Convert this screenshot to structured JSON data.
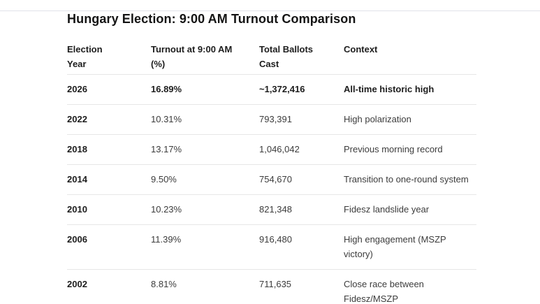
{
  "title": "Hungary Election: 9:00 AM Turnout Comparison",
  "table": {
    "headers": [
      "Election\nYear",
      "Turnout at 9:00 AM\n(%)",
      "Total Ballots\nCast",
      "Context"
    ],
    "rows": [
      {
        "year": "2026",
        "turnout": "16.89%",
        "ballots": "~1,372,416",
        "context": "All-time historic high"
      },
      {
        "year": "2022",
        "turnout": "10.31%",
        "ballots": "793,391",
        "context": "High polarization"
      },
      {
        "year": "2018",
        "turnout": "13.17%",
        "ballots": "1,046,042",
        "context": "Previous morning record"
      },
      {
        "year": "2014",
        "turnout": "9.50%",
        "ballots": "754,670",
        "context": "Transition to one-round system"
      },
      {
        "year": "2010",
        "turnout": "10.23%",
        "ballots": "821,348",
        "context": "Fidesz landslide year"
      },
      {
        "year": "2006",
        "turnout": "11.39%",
        "ballots": "916,480",
        "context": "High engagement (MSZP\nvictory)"
      },
      {
        "year": "2002",
        "turnout": "8.81%",
        "ballots": "711,635",
        "context": "Close race between\nFidesz/MSZP"
      }
    ]
  },
  "chart_data": {
    "type": "table",
    "title": "Hungary Election: 9:00 AM Turnout Comparison",
    "columns": [
      "Election Year",
      "Turnout at 9:00 AM (%)",
      "Total Ballots Cast",
      "Context"
    ],
    "rows": [
      [
        "2026",
        "16.89%",
        "~1,372,416",
        "All-time historic high"
      ],
      [
        "2022",
        "10.31%",
        "793,391",
        "High polarization"
      ],
      [
        "2018",
        "13.17%",
        "1,046,042",
        "Previous morning record"
      ],
      [
        "2014",
        "9.50%",
        "754,670",
        "Transition to one-round system"
      ],
      [
        "2010",
        "10.23%",
        "821,348",
        "Fidesz landslide year"
      ],
      [
        "2006",
        "11.39%",
        "916,480",
        "High engagement (MSZP victory)"
      ],
      [
        "2002",
        "8.81%",
        "711,635",
        "Close race between Fidesz/MSZP"
      ]
    ],
    "highlighted_row": "2026",
    "turnout_values_pct": [
      16.89,
      10.31,
      13.17,
      9.5,
      10.23,
      11.39,
      8.81
    ],
    "ballots_values": [
      1372416,
      793391,
      1046042,
      754670,
      821348,
      916480,
      711635
    ]
  },
  "colors": {
    "background": "#ffffff",
    "text_primary": "#1d1d1d",
    "text_secondary": "#3c3c3c",
    "row_divider": "#e7e7e7",
    "top_rule": "#e1e2ea"
  }
}
